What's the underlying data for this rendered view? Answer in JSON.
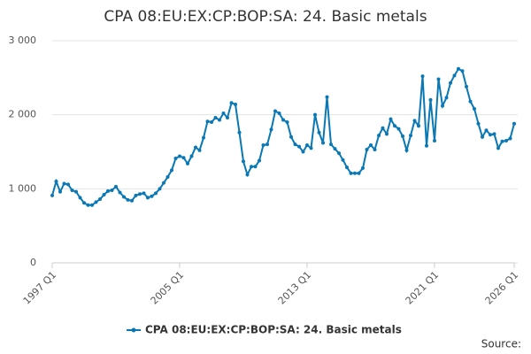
{
  "chart_data": {
    "type": "line",
    "title": "CPA 08:EU:EX:CP:BOP:SA: 24. Basic metals",
    "categories": [
      "1997 Q1",
      null,
      null,
      null,
      null,
      null,
      null,
      null,
      null,
      null,
      null,
      null,
      null,
      null,
      null,
      null,
      null,
      null,
      null,
      null,
      null,
      null,
      null,
      null,
      null,
      null,
      null,
      null,
      null,
      null,
      null,
      null,
      "2005 Q1",
      null,
      null,
      null,
      null,
      null,
      null,
      null,
      null,
      null,
      null,
      null,
      null,
      null,
      null,
      null,
      null,
      null,
      null,
      null,
      null,
      null,
      null,
      null,
      null,
      null,
      null,
      null,
      null,
      null,
      null,
      null,
      "2013 Q1",
      null,
      null,
      null,
      null,
      null,
      null,
      null,
      null,
      null,
      null,
      null,
      null,
      null,
      null,
      null,
      null,
      null,
      null,
      null,
      null,
      null,
      null,
      null,
      null,
      null,
      null,
      null,
      null,
      null,
      null,
      null,
      "2021 Q1",
      null,
      null,
      null,
      null,
      null,
      null,
      null,
      null,
      null,
      null,
      null,
      null,
      null,
      null,
      null,
      null,
      null,
      null,
      null,
      "2026 Q1"
    ],
    "series": [
      {
        "name": "CPA 08:EU:EX:CP:BOP:SA: 24. Basic metals",
        "color": "#0a78b5",
        "values": [
          910,
          1100,
          960,
          1070,
          1060,
          980,
          960,
          880,
          810,
          780,
          780,
          820,
          860,
          920,
          970,
          980,
          1030,
          950,
          890,
          850,
          840,
          910,
          930,
          940,
          880,
          900,
          940,
          1000,
          1080,
          1160,
          1250,
          1410,
          1440,
          1420,
          1340,
          1440,
          1560,
          1520,
          1690,
          1910,
          1900,
          1960,
          1930,
          2020,
          1960,
          2160,
          2140,
          1760,
          1370,
          1190,
          1300,
          1300,
          1380,
          1590,
          1600,
          1800,
          2050,
          2020,
          1930,
          1900,
          1700,
          1600,
          1570,
          1500,
          1590,
          1550,
          2000,
          1760,
          1620,
          2240,
          1600,
          1540,
          1480,
          1390,
          1290,
          1210,
          1210,
          1210,
          1280,
          1530,
          1590,
          1530,
          1720,
          1820,
          1740,
          1940,
          1850,
          1810,
          1710,
          1520,
          1720,
          1920,
          1850,
          2520,
          1580,
          2200,
          1650,
          2480,
          2120,
          2230,
          2430,
          2530,
          2620,
          2590,
          2380,
          2180,
          2080,
          1880,
          1700,
          1790,
          1730,
          1740,
          1550,
          1640,
          1650,
          1680,
          1880
        ]
      }
    ],
    "ylim": [
      0,
      3000
    ],
    "yticks": [
      0,
      {
        "value": 1000,
        "label": "1 000"
      },
      {
        "value": 2000,
        "label": "2 000"
      },
      {
        "value": 3000,
        "label": "3 000"
      }
    ],
    "grid": true,
    "source": "Source:"
  }
}
